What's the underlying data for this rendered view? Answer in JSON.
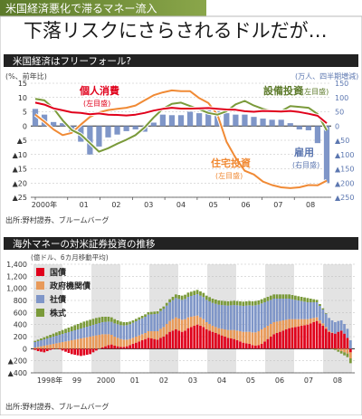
{
  "header": {
    "tag": "米国経済悪化で滞るマネー流入",
    "title": "下落リスクにさらされるドルだが…"
  },
  "colors": {
    "green": "#7a9a3a",
    "red": "#e0001b",
    "orange": "#f08a35",
    "blue": "#7f96c8",
    "gov": "#e89a5a",
    "shade": "#e3e3e3"
  },
  "chart_data": [
    {
      "type": "bar+line",
      "title": "米国経済はフリーフォール?",
      "left_axis": {
        "unit": "(%、前年比)",
        "ylim": [
          -25,
          15
        ],
        "ticks": [
          15,
          10,
          5,
          0,
          -5,
          -10,
          -15,
          -20,
          -25
        ],
        "tick_labels": [
          "15",
          "10",
          "5",
          "0",
          "▲5",
          "▲10",
          "▲15",
          "▲20",
          "▲25"
        ]
      },
      "right_axis": {
        "unit": "(万人、四半期増減)",
        "ylim": [
          -250,
          150
        ],
        "ticks": [
          150,
          100,
          50,
          0,
          -50,
          -100,
          -150,
          -200,
          -250
        ],
        "tick_labels": [
          "150",
          "100",
          "50",
          "0",
          "▲50",
          "▲100",
          "▲150",
          "▲200",
          "▲250"
        ]
      },
      "x_labels": [
        "2000年",
        "01",
        "02",
        "03",
        "04",
        "05",
        "06",
        "07",
        "08"
      ],
      "series": [
        {
          "name": "個人消費",
          "axis_note": "(左目盛)",
          "type": "line",
          "color": "red",
          "values": [
            8.2,
            7.5,
            6.2,
            5.5,
            4.8,
            4.6,
            4.1,
            4.4,
            4.0,
            3.9,
            3.7,
            4.0,
            4.6,
            5.4,
            6.0,
            6.4,
            6.1,
            6.1,
            6.2,
            6.3,
            6.0,
            5.8,
            5.7,
            5.2,
            5.0,
            5.3,
            5.2,
            5.1,
            5.3,
            4.9,
            4.3,
            3.6,
            1.0
          ]
        },
        {
          "name": "設備投資",
          "axis_note": "(左目盛)",
          "type": "line",
          "color": "green",
          "values": [
            9.5,
            9.0,
            6.2,
            2.0,
            -1.4,
            -3.0,
            -6.0,
            -9.0,
            -7.8,
            -6.2,
            -4.8,
            -3.2,
            -0.5,
            3.0,
            6.0,
            7.8,
            8.2,
            7.0,
            5.9,
            4.6,
            4.0,
            5.2,
            7.6,
            8.8,
            7.2,
            6.0,
            5.2,
            5.2,
            7.0,
            6.7,
            6.4,
            4.2,
            -1.5
          ]
        },
        {
          "name": "住宅投資",
          "axis_note": "(左目盛)",
          "type": "line",
          "color": "orange",
          "values": [
            4.0,
            1.5,
            -1.2,
            -3.2,
            -2.4,
            0.5,
            3.2,
            4.8,
            5.6,
            6.0,
            6.4,
            7.2,
            9.0,
            10.8,
            11.8,
            12.5,
            12.2,
            12.2,
            9.8,
            8.1,
            4.0,
            -5.5,
            -11.2,
            -15.7,
            -17.0,
            -19.5,
            -20.7,
            -21.5,
            -21.8,
            -21.5,
            -20.7,
            -20.8,
            -19.2
          ]
        },
        {
          "name": "雇用",
          "axis_note": "(右目盛)",
          "type": "bar",
          "color": "blue",
          "values": [
            60,
            40,
            14,
            10,
            -20,
            -55,
            -100,
            -72,
            -40,
            -30,
            -18,
            -12,
            -20,
            12,
            40,
            38,
            38,
            50,
            45,
            55,
            52,
            45,
            40,
            40,
            32,
            26,
            22,
            22,
            10,
            -12,
            -15,
            -60,
            -200
          ]
        }
      ],
      "source": "出所:野村證券、ブルームバーグ"
    },
    {
      "type": "stacked-bar",
      "title": "海外マネーの対米証券投資の推移",
      "unit": "(億ドル、6カ月移動平均)",
      "ylim": [
        -400,
        1400
      ],
      "ticks": [
        1400,
        1200,
        1000,
        800,
        600,
        400,
        200,
        0,
        -200,
        -400
      ],
      "tick_labels": [
        "1,400",
        "1,200",
        "1,000",
        "800",
        "600",
        "400",
        "200",
        "0",
        "▲200",
        "▲400"
      ],
      "x_labels": [
        "1998年",
        "99",
        "2000",
        "01",
        "02",
        "03",
        "04",
        "05",
        "06",
        "07",
        "08"
      ],
      "series": [
        {
          "name": "国債",
          "color": "red",
          "values": [
            -20,
            -40,
            -50,
            -60,
            -40,
            -20,
            -10,
            0,
            -10,
            -30,
            -50,
            -70,
            -90,
            -100,
            -110,
            -120,
            -110,
            -100,
            -90,
            -60,
            -30,
            0,
            20,
            40,
            60,
            70,
            50,
            40,
            30,
            30,
            40,
            60,
            80,
            100,
            120,
            140,
            160,
            180,
            170,
            160,
            150,
            180,
            200,
            240,
            280,
            300,
            320,
            300,
            280,
            300,
            340,
            360,
            380,
            400,
            380,
            360,
            320,
            300,
            280,
            260,
            240,
            220,
            200,
            180,
            170,
            160,
            140,
            120,
            100,
            90,
            80,
            60,
            50,
            60,
            80,
            120,
            160,
            200,
            240,
            260,
            280,
            300,
            320,
            340,
            350,
            360,
            370,
            380,
            390,
            400,
            420,
            440,
            460,
            420,
            380,
            330,
            280,
            260,
            250,
            280,
            300,
            250,
            180,
            -60
          ]
        },
        {
          "name": "政府機関債",
          "color": "gov",
          "values": [
            20,
            30,
            40,
            50,
            60,
            70,
            80,
            90,
            100,
            110,
            120,
            130,
            140,
            150,
            160,
            170,
            180,
            190,
            200,
            210,
            220,
            230,
            220,
            200,
            180,
            160,
            150,
            140,
            130,
            120,
            110,
            100,
            100,
            100,
            100,
            100,
            100,
            110,
            120,
            130,
            140,
            150,
            160,
            170,
            180,
            190,
            200,
            200,
            200,
            190,
            180,
            170,
            160,
            150,
            140,
            130,
            120,
            110,
            100,
            100,
            100,
            110,
            120,
            130,
            140,
            150,
            160,
            170,
            180,
            190,
            200,
            210,
            220,
            230,
            240,
            230,
            220,
            210,
            200,
            190,
            180,
            170,
            160,
            150,
            140,
            130,
            120,
            110,
            100,
            90,
            80,
            70,
            60,
            50,
            40,
            30,
            20,
            10,
            0,
            -20,
            -40,
            -60,
            -80,
            -100
          ]
        },
        {
          "name": "社債",
          "color": "blue",
          "values": [
            90,
            95,
            100,
            105,
            110,
            115,
            120,
            125,
            130,
            135,
            140,
            145,
            150,
            155,
            160,
            165,
            170,
            175,
            180,
            185,
            190,
            195,
            200,
            205,
            210,
            215,
            220,
            225,
            230,
            235,
            240,
            245,
            250,
            255,
            260,
            265,
            270,
            275,
            280,
            285,
            290,
            295,
            300,
            305,
            310,
            315,
            320,
            325,
            330,
            335,
            340,
            345,
            350,
            355,
            360,
            365,
            370,
            375,
            380,
            385,
            390,
            395,
            400,
            405,
            410,
            415,
            420,
            425,
            430,
            435,
            440,
            445,
            450,
            440,
            430,
            420,
            410,
            400,
            390,
            380,
            370,
            360,
            350,
            340,
            330,
            320,
            310,
            300,
            290,
            280,
            270,
            260,
            250,
            240,
            230,
            220,
            210,
            200,
            190,
            180,
            170,
            160,
            150,
            140
          ]
        },
        {
          "name": "株式",
          "color": "green",
          "values": [
            20,
            25,
            30,
            35,
            40,
            45,
            50,
            55,
            60,
            65,
            70,
            75,
            80,
            85,
            90,
            95,
            100,
            100,
            100,
            100,
            100,
            95,
            90,
            85,
            80,
            75,
            70,
            65,
            60,
            55,
            50,
            45,
            40,
            40,
            40,
            40,
            40,
            40,
            40,
            40,
            40,
            40,
            40,
            45,
            50,
            55,
            60,
            65,
            70,
            70,
            70,
            70,
            70,
            70,
            70,
            70,
            70,
            70,
            70,
            70,
            70,
            70,
            70,
            70,
            70,
            70,
            70,
            70,
            70,
            70,
            70,
            70,
            70,
            70,
            70,
            70,
            70,
            70,
            70,
            70,
            70,
            70,
            70,
            70,
            70,
            70,
            70,
            70,
            70,
            70,
            60,
            50,
            40,
            30,
            20,
            10,
            0,
            -10,
            -20,
            -30,
            -40,
            -50,
            -60,
            -80
          ]
        }
      ],
      "source": "出所:野村證券、ブルームバーグ"
    }
  ]
}
